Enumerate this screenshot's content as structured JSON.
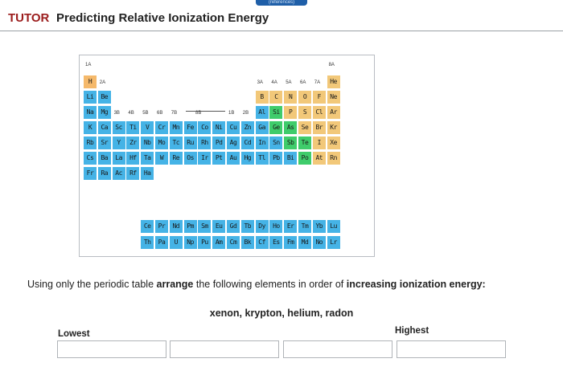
{
  "header": {
    "references_tab": "(references)",
    "tutor_label": "TUTOR",
    "title": "Predicting Relative Ionization Energy"
  },
  "table": {
    "group_labels": {
      "g1": "1A",
      "g2": "2A",
      "g3": "3B",
      "g4": "4B",
      "g5": "5B",
      "g6": "6B",
      "g7": "7B",
      "g8": "8B",
      "g11": "1B",
      "g12": "2B",
      "g13": "3A",
      "g14": "4A",
      "g15": "5A",
      "g16": "6A",
      "g17": "7A",
      "g18": "8A"
    },
    "elements": {
      "H": "H",
      "He": "He",
      "Li": "Li",
      "Be": "Be",
      "B": "B",
      "C": "C",
      "N": "N",
      "O": "O",
      "F": "F",
      "Ne": "Ne",
      "Na": "Na",
      "Mg": "Mg",
      "Al": "Al",
      "Si": "Si",
      "P": "P",
      "S": "S",
      "Cl": "Cl",
      "Ar": "Ar",
      "K": "K",
      "Ca": "Ca",
      "Sc": "Sc",
      "Ti": "Ti",
      "V": "V",
      "Cr": "Cr",
      "Mn": "Mn",
      "Fe": "Fe",
      "Co": "Co",
      "Ni": "Ni",
      "Cu": "Cu",
      "Zn": "Zn",
      "Ga": "Ga",
      "Ge": "Ge",
      "As": "As",
      "Se": "Se",
      "Br": "Br",
      "Kr": "Kr",
      "Rb": "Rb",
      "Sr": "Sr",
      "Y": "Y",
      "Zr": "Zr",
      "Nb": "Nb",
      "Mo": "Mo",
      "Tc": "Tc",
      "Ru": "Ru",
      "Rh": "Rh",
      "Pd": "Pd",
      "Ag": "Ag",
      "Cd": "Cd",
      "In": "In",
      "Sn": "Sn",
      "Sb": "Sb",
      "Te": "Te",
      "I": "I",
      "Xe": "Xe",
      "Cs": "Cs",
      "Ba": "Ba",
      "La": "La",
      "Hf": "Hf",
      "Ta": "Ta",
      "W": "W",
      "Re": "Re",
      "Os": "Os",
      "Ir": "Ir",
      "Pt": "Pt",
      "Au": "Au",
      "Hg": "Hg",
      "Tl": "Tl",
      "Pb": "Pb",
      "Bi": "Bi",
      "Po": "Po",
      "At": "At",
      "Rn": "Rn",
      "Fr": "Fr",
      "Ra": "Ra",
      "Ac": "Ac",
      "Rf": "Rf",
      "Ha": "Ha",
      "Ce": "Ce",
      "Pr": "Pr",
      "Nd": "Nd",
      "Pm": "Pm",
      "Sm": "Sm",
      "Eu": "Eu",
      "Gd": "Gd",
      "Tb": "Tb",
      "Dy": "Dy",
      "Ho": "Ho",
      "Er": "Er",
      "Tm": "Tm",
      "Yb": "Yb",
      "Lu": "Lu",
      "Th": "Th",
      "Pa": "Pa",
      "U": "U",
      "Np": "Np",
      "Pu": "Pu",
      "Am": "Am",
      "Cm": "Cm",
      "Bk": "Bk",
      "Cf": "Cf",
      "Es": "Es",
      "Fm": "Fm",
      "Md": "Md",
      "No": "No",
      "Lr": "Lr"
    }
  },
  "question": {
    "p1": "Using only the periodic table ",
    "bold1": "arrange",
    "p2": " the following elements in order of ",
    "bold2": "increasing ionization energy:",
    "elements_list": "xenon, krypton, helium, radon"
  },
  "answer": {
    "lowest_label": "Lowest",
    "highest_label": "Highest",
    "slot_count": 4
  },
  "colors": {
    "title_red": "#9b1c1c",
    "blue": "#45b3e6",
    "green": "#3fcc6b",
    "yellow": "#f2c879",
    "orange": "#f5b96b"
  }
}
